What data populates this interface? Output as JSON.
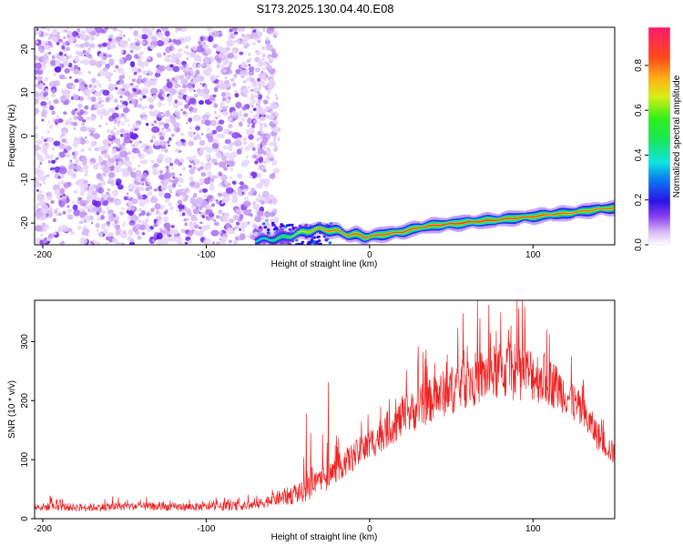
{
  "title": "S173.2025.130.04.40.E08",
  "chart_data": [
    {
      "type": "heatmap",
      "xlabel": "Height of straight line (km)",
      "ylabel": "Frequency (Hz)",
      "xlim": [
        -205,
        150
      ],
      "ylim": [
        -25,
        25
      ],
      "x_ticks": [
        -200,
        -100,
        0,
        100
      ],
      "x_tick_labels": [
        "-200",
        "-100",
        "0",
        "100"
      ],
      "y_ticks": [
        -20,
        -10,
        0,
        10,
        20
      ],
      "y_tick_labels": [
        "-20",
        "-10",
        "0",
        "10",
        "20"
      ],
      "colorbar": {
        "label": "Normalized spectral amplitude",
        "range": [
          0,
          0.97
        ],
        "ticks": [
          0,
          0.2,
          0.4,
          0.6,
          0.8
        ],
        "tick_labels": [
          "0.0",
          "0.2",
          "0.4",
          "0.6",
          "0.8"
        ]
      },
      "ridge": {
        "x": [
          -70,
          -55,
          -45,
          -35,
          -25,
          -15,
          -5,
          0,
          10,
          20,
          30,
          40,
          50,
          60,
          70,
          80,
          90,
          100,
          110,
          120,
          130,
          140,
          150
        ],
        "y": [
          -24,
          -23.5,
          -22.5,
          -21.5,
          -21.5,
          -22.5,
          -23,
          -23,
          -22.5,
          -22,
          -21,
          -20.5,
          -20.2,
          -19.8,
          -19.5,
          -19.2,
          -18.8,
          -18.5,
          -18,
          -17.8,
          -17.3,
          -16.8,
          -16.5
        ],
        "amplitude": [
          0.4,
          0.55,
          0.65,
          0.8,
          0.85,
          0.85,
          0.9,
          0.9,
          0.9,
          0.9,
          0.9,
          0.92,
          0.95,
          0.95,
          0.95,
          0.92,
          0.9,
          0.9,
          0.88,
          0.85,
          0.85,
          0.85,
          0.85
        ]
      },
      "noise_region_x": [
        -205,
        -65
      ],
      "noise_amplitude_range": [
        0.0,
        0.2
      ]
    },
    {
      "type": "line",
      "xlabel": "Height of straight line (km)",
      "ylabel": "SNR (10 * v/v)",
      "xlim": [
        -205,
        150
      ],
      "ylim": [
        0,
        370
      ],
      "x_ticks": [
        -200,
        -100,
        0,
        100
      ],
      "x_tick_labels": [
        "-200",
        "-100",
        "0",
        "100"
      ],
      "y_ticks": [
        0,
        100,
        200,
        300
      ],
      "y_tick_labels": [
        "0",
        "100",
        "200",
        "300"
      ],
      "color": "#ee2222",
      "series": [
        {
          "x": [
            -205,
            -190,
            -175,
            -160,
            -145,
            -130,
            -115,
            -100,
            -85,
            -70,
            -60,
            -50,
            -45,
            -40,
            -35,
            -30,
            -25,
            -20,
            -10,
            0,
            10,
            20,
            30,
            40,
            50,
            60,
            70,
            80,
            90,
            100,
            110,
            120,
            130,
            140,
            150
          ],
          "y": [
            20,
            20,
            19,
            20,
            21,
            20,
            20,
            20,
            21,
            23,
            32,
            38,
            42,
            46,
            55,
            62,
            72,
            85,
            105,
            125,
            150,
            170,
            188,
            205,
            218,
            232,
            242,
            250,
            250,
            245,
            232,
            212,
            180,
            140,
            108
          ],
          "spread": [
            12,
            12,
            12,
            12,
            12,
            12,
            12,
            12,
            13,
            14,
            20,
            28,
            30,
            32,
            40,
            45,
            42,
            40,
            45,
            50,
            55,
            60,
            65,
            70,
            75,
            80,
            85,
            90,
            90,
            85,
            75,
            65,
            55,
            45,
            35
          ]
        }
      ]
    }
  ]
}
